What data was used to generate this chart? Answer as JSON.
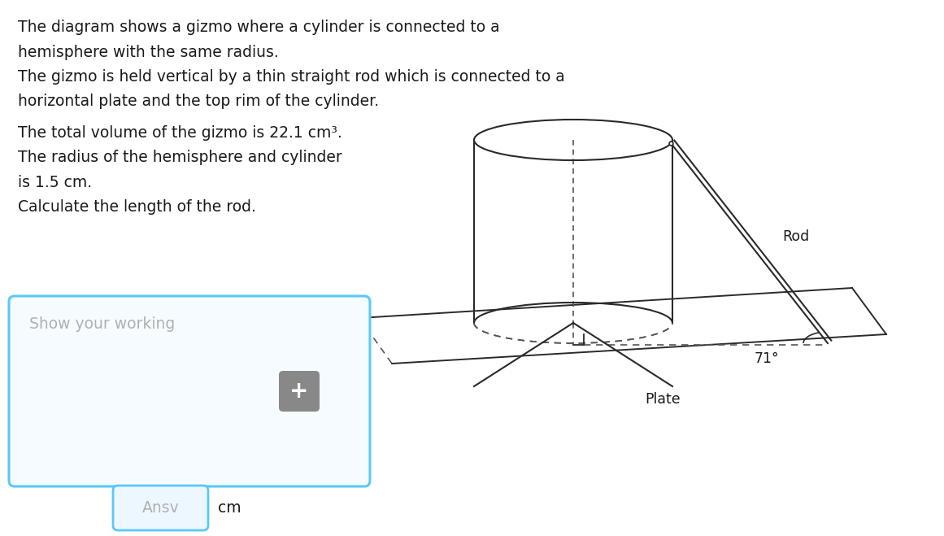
{
  "bg_color": "#ffffff",
  "text_color": "#1a1a1a",
  "text_lines_top": [
    "The diagram shows a gizmo where a cylinder is connected to a",
    "hemisphere with the same radius.",
    "The gizmo is held vertical by a thin straight rod which is connected to a",
    "horizontal plate and the top rim of the cylinder."
  ],
  "text_lines_mid": [
    "The total volume of the gizmo is 22.1 cm³.",
    "The radius of the hemisphere and cylinder",
    "is 1.5 cm.",
    "Calculate the length of the rod."
  ],
  "box_placeholder": "Show your working",
  "box_placeholder_color": "#b0b0b0",
  "box_border_color": "#5bc8f5",
  "box_bg_color": "#f5fbff",
  "ansv_label": "Ansv",
  "ansv_border_color": "#5bc8f5",
  "ansv_bg_color": "#edf7ff",
  "cm_label": "cm",
  "plus_icon_color": "#888888",
  "diagram_line_color": "#2a2a2a",
  "diagram_dashed_color": "#555555",
  "rod_label": "Rod",
  "plate_label": "Plate",
  "angle_label": "71°",
  "fontsize_main": 13.5,
  "fontsize_diagram": 12.5
}
